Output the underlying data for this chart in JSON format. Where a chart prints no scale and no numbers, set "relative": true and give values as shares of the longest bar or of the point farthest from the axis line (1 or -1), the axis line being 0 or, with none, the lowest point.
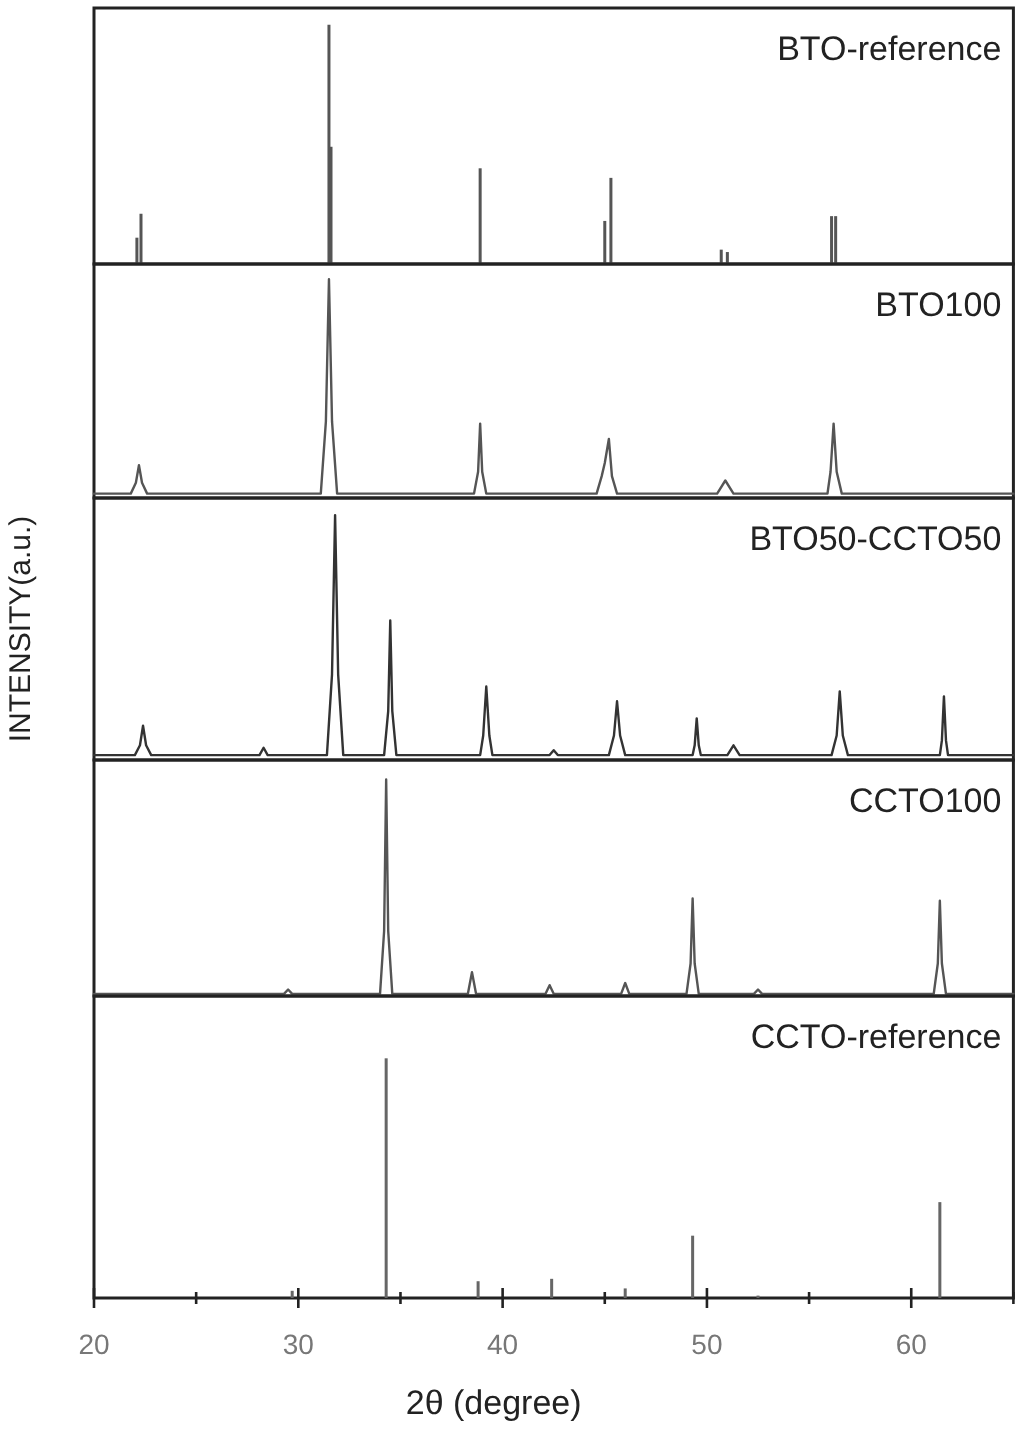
{
  "chart_data": [
    {
      "type": "bar",
      "relative": true,
      "xlim": [
        20,
        65
      ],
      "tick_labels": false,
      "x": [
        22.1,
        22.3,
        31.5,
        31.6,
        38.9,
        45.0,
        45.3,
        50.7,
        51.0,
        56.1,
        56.3
      ],
      "series": [
        {
          "name": "BTO-reference",
          "color": "#555555",
          "values": [
            0.11,
            0.21,
            1,
            0.49,
            0.4,
            0.18,
            0.36,
            0.06,
            0.05,
            0.2,
            0.2
          ]
        }
      ]
    },
    {
      "type": "line",
      "relative": true,
      "xlim": [
        20,
        65
      ],
      "tick_labels": false,
      "x": [
        20,
        21.8,
        22.05,
        22.2,
        22.35,
        22.6,
        31.1,
        31.35,
        31.5,
        31.65,
        31.9,
        38.6,
        38.8,
        38.9,
        39.0,
        39.2,
        44.6,
        44.85,
        45.0,
        45.2,
        45.35,
        45.6,
        50.5,
        50.9,
        51.3,
        55.9,
        56.05,
        56.2,
        56.35,
        56.6,
        65
      ],
      "series": [
        {
          "name": "BTO100",
          "color": "#555555",
          "values": [
            0.02,
            0.02,
            0.07,
            0.15,
            0.07,
            0.02,
            0.02,
            0.35,
            1,
            0.35,
            0.02,
            0.02,
            0.12,
            0.34,
            0.12,
            0.02,
            0.02,
            0.1,
            0.16,
            0.27,
            0.1,
            0.02,
            0.02,
            0.08,
            0.02,
            0.02,
            0.12,
            0.34,
            0.12,
            0.02,
            0.02
          ]
        }
      ]
    },
    {
      "type": "line",
      "relative": true,
      "xlim": [
        20,
        65
      ],
      "tick_labels": false,
      "ylabel": "INTENSITY(a.u.)",
      "x": [
        20,
        22.0,
        22.25,
        22.4,
        22.55,
        22.8,
        28.1,
        28.3,
        28.5,
        31.4,
        31.65,
        31.8,
        31.95,
        32.2,
        34.2,
        34.4,
        34.5,
        34.6,
        34.8,
        38.9,
        39.05,
        39.2,
        39.35,
        39.5,
        42.3,
        42.5,
        42.7,
        45.2,
        45.45,
        45.6,
        45.75,
        46.0,
        49.3,
        49.4,
        49.5,
        49.6,
        49.7,
        51.0,
        51.3,
        51.6,
        56.1,
        56.35,
        56.5,
        56.65,
        56.9,
        61.4,
        61.5,
        61.6,
        61.7,
        61.8,
        65
      ],
      "series": [
        {
          "name": "BTO50-CCTO50",
          "color": "#333333",
          "values": [
            0.02,
            0.02,
            0.06,
            0.14,
            0.06,
            0.02,
            0.02,
            0.05,
            0.02,
            0.02,
            0.35,
            1,
            0.35,
            0.02,
            0.02,
            0.2,
            0.57,
            0.2,
            0.02,
            0.02,
            0.1,
            0.3,
            0.1,
            0.02,
            0.02,
            0.04,
            0.02,
            0.02,
            0.1,
            0.24,
            0.1,
            0.02,
            0.02,
            0.06,
            0.17,
            0.06,
            0.02,
            0.02,
            0.06,
            0.02,
            0.02,
            0.1,
            0.28,
            0.1,
            0.02,
            0.02,
            0.08,
            0.26,
            0.08,
            0.02,
            0.02
          ]
        }
      ]
    },
    {
      "type": "line",
      "relative": true,
      "xlim": [
        20,
        65
      ],
      "tick_labels": false,
      "x": [
        20,
        29.3,
        29.5,
        29.7,
        34.0,
        34.2,
        34.3,
        34.4,
        34.6,
        38.3,
        38.5,
        38.7,
        42.1,
        42.3,
        42.5,
        45.8,
        46.0,
        46.2,
        49.0,
        49.2,
        49.3,
        49.4,
        49.6,
        52.3,
        52.5,
        52.7,
        61.1,
        61.3,
        61.4,
        61.5,
        61.7,
        65
      ],
      "series": [
        {
          "name": "CCTO100",
          "color": "#555555",
          "values": [
            0.01,
            0.01,
            0.03,
            0.01,
            0.01,
            0.3,
            1,
            0.3,
            0.01,
            0.01,
            0.11,
            0.01,
            0.01,
            0.05,
            0.01,
            0.01,
            0.06,
            0.01,
            0.01,
            0.15,
            0.45,
            0.15,
            0.01,
            0.01,
            0.03,
            0.01,
            0.01,
            0.15,
            0.44,
            0.15,
            0.01,
            0.01
          ]
        }
      ]
    },
    {
      "type": "bar",
      "relative": true,
      "xlim": [
        20,
        65
      ],
      "tick_labels": "x",
      "xlabel": "2θ (degree)",
      "xticks": [
        20,
        {
          "value": 25,
          "label": null
        },
        30,
        {
          "value": 35,
          "label": null
        },
        40,
        {
          "value": 45,
          "label": null
        },
        50,
        {
          "value": 55,
          "label": null
        },
        60,
        {
          "value": 65,
          "label": null
        }
      ],
      "x": [
        29.7,
        34.3,
        38.8,
        42.4,
        46.0,
        49.3,
        52.5,
        61.4
      ],
      "series": [
        {
          "name": "CCTO-reference",
          "color": "#666666",
          "values": [
            0.03,
            1,
            0.07,
            0.08,
            0.04,
            0.26,
            0.01,
            0.4
          ]
        }
      ]
    }
  ]
}
